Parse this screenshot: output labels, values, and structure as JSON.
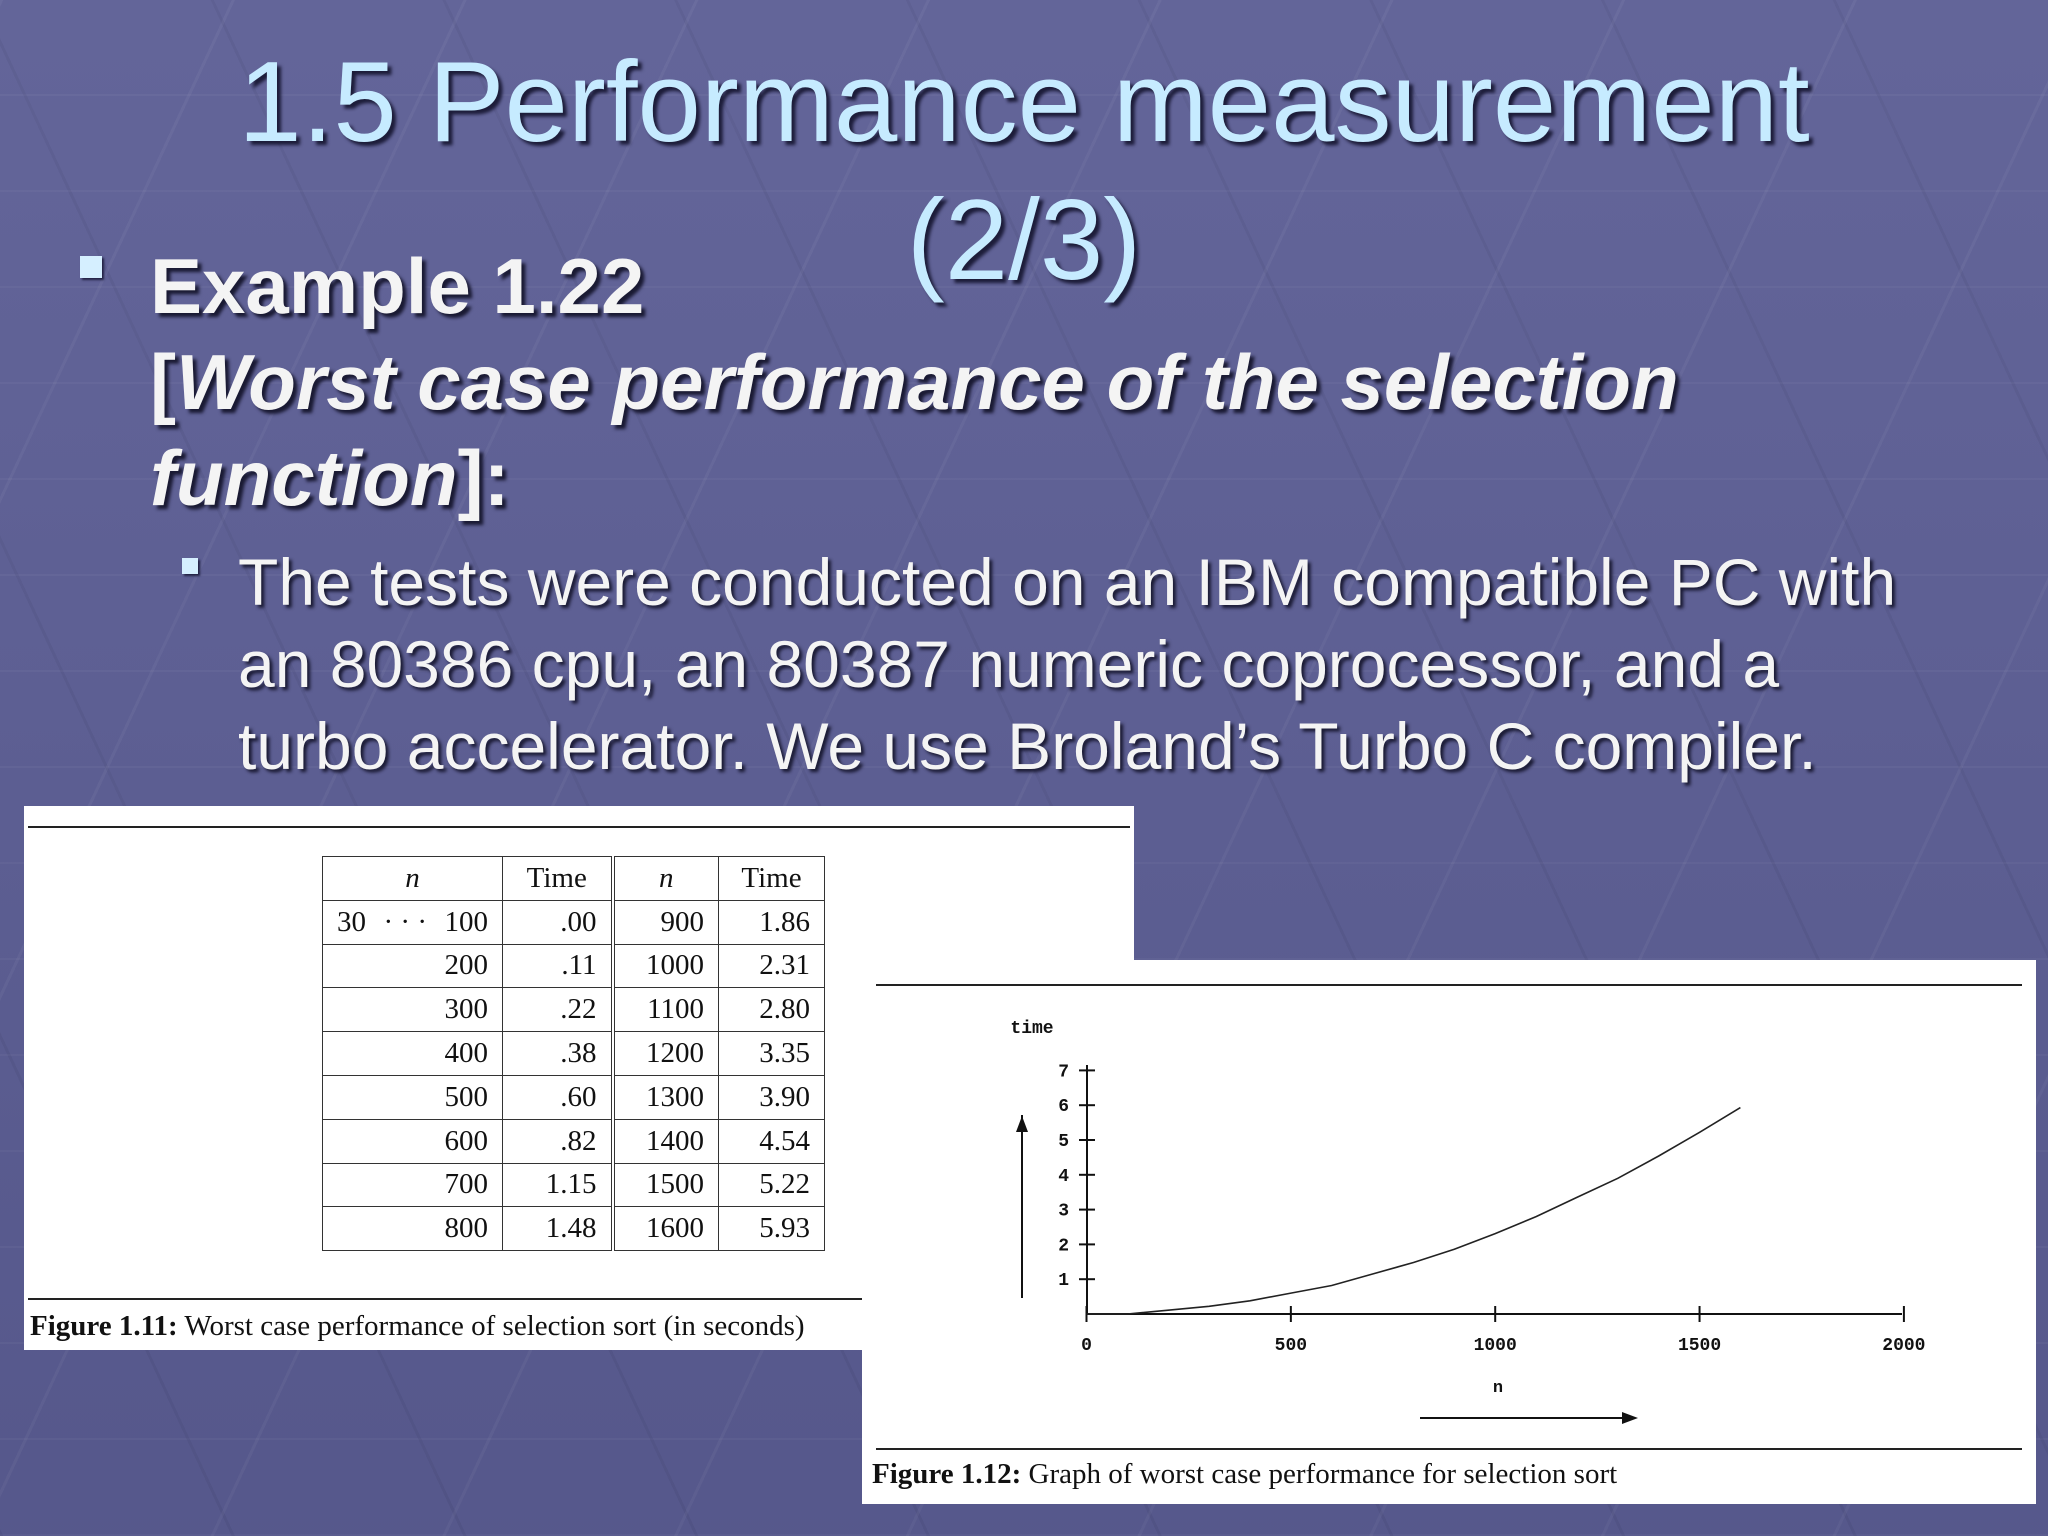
{
  "slide": {
    "title_line1": "1.5 Performance measurement",
    "title_line2": "(2/3)"
  },
  "example": {
    "heading": "Example 1.22",
    "bracket_open": "[",
    "subtitle_part1": "Worst case performance of the selection",
    "subtitle_part2": "function",
    "bracket_close": "]:"
  },
  "detail": {
    "line1": "The tests were conducted on an IBM compatible PC with",
    "line2": "an 80386 cpu, an 80387 numeric coprocessor, and a",
    "line3": "turbo accelerator. We use Broland’s Turbo C compiler."
  },
  "figure1": {
    "headers": [
      "n",
      "Time",
      "n",
      "Time"
    ],
    "first_row": {
      "n_start": "30",
      "dots": "· · ·",
      "n_end": "100",
      "time": ".00",
      "n2": "900",
      "time2": "1.86"
    },
    "rows": [
      {
        "n": "200",
        "time": ".11",
        "n2": "1000",
        "time2": "2.31"
      },
      {
        "n": "300",
        "time": ".22",
        "n2": "1100",
        "time2": "2.80"
      },
      {
        "n": "400",
        "time": ".38",
        "n2": "1200",
        "time2": "3.35"
      },
      {
        "n": "500",
        "time": ".60",
        "n2": "1300",
        "time2": "3.90"
      },
      {
        "n": "600",
        "time": ".82",
        "n2": "1400",
        "time2": "4.54"
      },
      {
        "n": "700",
        "time": "1.15",
        "n2": "1500",
        "time2": "5.22"
      },
      {
        "n": "800",
        "time": "1.48",
        "n2": "1600",
        "time2": "5.93"
      }
    ],
    "caption_label": "Figure 1.11:",
    "caption_text": " Worst case performance of selection sort (in seconds)"
  },
  "figure2": {
    "caption_label": "Figure 1.12:",
    "caption_text": " Graph of worst case performance for selection sort"
  },
  "chart_data": {
    "type": "line",
    "ylabel": "time",
    "xlabel": "n",
    "xlim": [
      0,
      2000
    ],
    "ylim": [
      0,
      7
    ],
    "x_ticks": [
      0,
      500,
      1000,
      1500,
      2000
    ],
    "y_ticks": [
      1,
      2,
      3,
      4,
      5,
      6,
      7
    ],
    "series": [
      {
        "x": [
          0,
          100,
          200,
          300,
          400,
          500,
          600,
          700,
          800,
          900,
          1000,
          1100,
          1200,
          1300,
          1400,
          1500,
          1600
        ],
        "values": [
          0,
          0,
          0.11,
          0.22,
          0.38,
          0.6,
          0.82,
          1.15,
          1.48,
          1.86,
          2.31,
          2.8,
          3.35,
          3.9,
          4.54,
          5.22,
          5.93
        ]
      }
    ]
  }
}
